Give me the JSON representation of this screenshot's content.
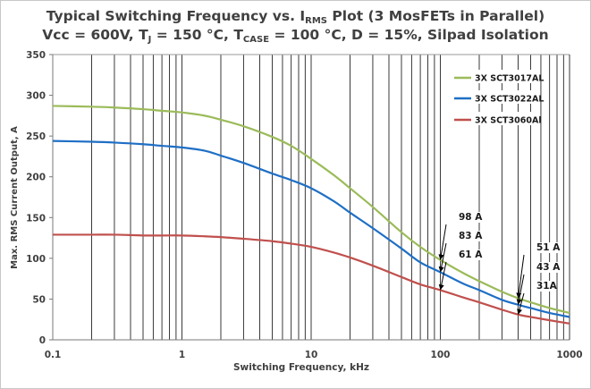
{
  "chart_data": {
    "type": "line",
    "title_line1": {
      "pre": "Typical Switching Frequency vs. I",
      "sub": "RMS",
      "post": " Plot (3 MosFETs in Parallel)"
    },
    "title_line2": {
      "part1": "Vcc = 600V, T",
      "sub1": "J",
      "part2": " = 150 °C, T",
      "sub2": "CASE",
      "part3": " = 100 °C, D = 15%, Silpad Isolation"
    },
    "xlabel": "Switching Frequency, kHz",
    "ylabel": "Max. RMS Current Output, A",
    "x_scale": "log",
    "xlim": [
      0.1,
      1000
    ],
    "ylim": [
      0,
      350
    ],
    "x_ticks": [
      {
        "value": 0.1,
        "label": "0.1"
      },
      {
        "value": 1,
        "label": "1"
      },
      {
        "value": 10,
        "label": "10"
      },
      {
        "value": 100,
        "label": "100"
      },
      {
        "value": 1000,
        "label": "1000"
      }
    ],
    "y_ticks": [
      0,
      50,
      100,
      150,
      200,
      250,
      300,
      350
    ],
    "grid": "vertical minor gridlines",
    "legend_position": "top-right",
    "series": [
      {
        "name": "3X SCT3017AL",
        "color": "#9bbb59",
        "x": [
          0.1,
          0.2,
          0.3,
          0.5,
          0.7,
          1,
          1.5,
          2,
          3,
          5,
          7,
          10,
          15,
          20,
          30,
          50,
          70,
          100,
          150,
          200,
          300,
          400,
          500,
          700,
          1000
        ],
        "y": [
          287,
          286,
          285,
          283,
          281,
          279,
          275,
          270,
          262,
          249,
          238,
          222,
          202,
          186,
          163,
          132,
          114,
          98,
          82,
          72,
          59,
          51,
          46,
          39,
          33
        ]
      },
      {
        "name": "3X SCT3022AL",
        "color": "#1f6fc5",
        "x": [
          0.1,
          0.2,
          0.3,
          0.5,
          0.7,
          1,
          1.5,
          2,
          3,
          5,
          7,
          10,
          15,
          20,
          30,
          50,
          70,
          100,
          150,
          200,
          300,
          400,
          500,
          700,
          1000
        ],
        "y": [
          244,
          243,
          242,
          240,
          238,
          236,
          232,
          226,
          217,
          204,
          196,
          186,
          170,
          156,
          137,
          112,
          95,
          83,
          69,
          61,
          49,
          43,
          39,
          33,
          28
        ]
      },
      {
        "name": "3X SCT3060Al",
        "color": "#c0504d",
        "x": [
          0.1,
          0.2,
          0.3,
          0.5,
          0.7,
          1,
          1.5,
          2,
          3,
          5,
          7,
          10,
          15,
          20,
          30,
          50,
          70,
          100,
          150,
          200,
          300,
          400,
          500,
          700,
          1000
        ],
        "y": [
          129,
          129,
          129,
          128,
          128,
          128,
          127,
          126,
          124,
          121,
          118,
          114,
          107,
          101,
          91,
          77,
          68,
          61,
          52,
          46,
          37,
          31,
          28,
          24,
          20
        ]
      }
    ],
    "annotations": [
      {
        "label": "98 A",
        "x": 100,
        "y": 98
      },
      {
        "label": "83 A",
        "x": 100,
        "y": 83
      },
      {
        "label": "61 A",
        "x": 100,
        "y": 61
      },
      {
        "label": "51 A",
        "x": 400,
        "y": 51
      },
      {
        "label": "43 A",
        "x": 400,
        "y": 43
      },
      {
        "label": "31A",
        "x": 400,
        "y": 31
      }
    ]
  }
}
